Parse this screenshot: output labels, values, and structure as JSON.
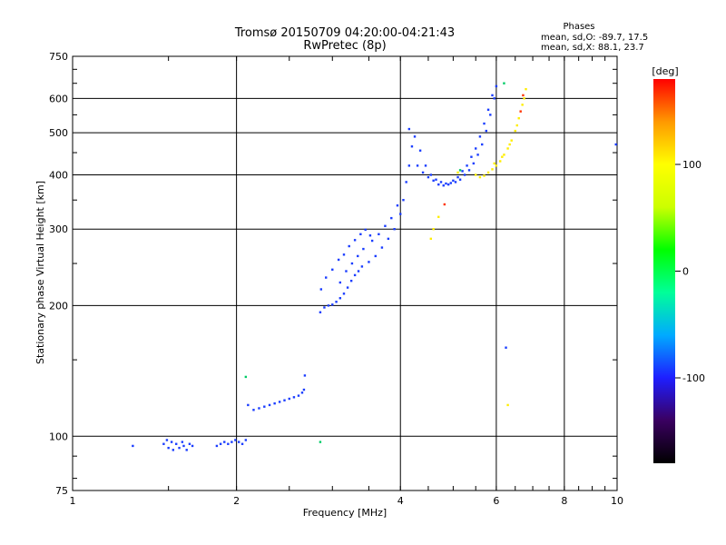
{
  "chart_data": {
    "type": "scatter",
    "title": "Tromsø 20150709 04:20:00-04:21:43",
    "subtitle": "RwPretec (8p)",
    "xlabel": "Frequency [MHz]",
    "ylabel": "Stationary phase Virtual Height [km]",
    "x_scale": "log",
    "y_scale": "log",
    "xlim": [
      1,
      10
    ],
    "ylim": [
      75,
      750
    ],
    "x_ticks": [
      "1",
      "2",
      "4",
      "6",
      "8",
      "10"
    ],
    "y_ticks": [
      "75",
      "100",
      "200",
      "300",
      "400",
      "500",
      "600",
      "750"
    ],
    "grid": true,
    "phases_header": "Phases",
    "phases_line_o": "mean, sd,O:  -89.7,  17.5",
    "phases_line_x": "mean, sd,X:  88.1,  23.7",
    "colorbar": {
      "label": "[deg]",
      "range": [
        -180,
        180
      ],
      "ticks": [
        "100",
        "0",
        "-100"
      ],
      "tick_values": [
        100,
        0,
        -100
      ],
      "stops": [
        "#000000",
        "#3a0060",
        "#1e1eff",
        "#00aaff",
        "#00ff99",
        "#00ff00",
        "#ccff00",
        "#ffff00",
        "#ff9900",
        "#ff0000"
      ]
    },
    "series": [
      {
        "color": "#1a3dff",
        "points": [
          [
            1.29,
            95
          ],
          [
            1.47,
            96
          ],
          [
            1.49,
            98
          ],
          [
            1.5,
            94
          ],
          [
            1.52,
            97
          ],
          [
            1.53,
            93
          ],
          [
            1.55,
            96
          ],
          [
            1.57,
            94
          ],
          [
            1.59,
            97
          ],
          [
            1.6,
            95
          ],
          [
            1.62,
            93
          ],
          [
            1.64,
            96
          ],
          [
            1.66,
            95
          ],
          [
            1.84,
            95
          ],
          [
            1.87,
            96
          ],
          [
            1.9,
            97
          ],
          [
            1.93,
            96
          ],
          [
            1.96,
            97
          ],
          [
            1.99,
            98
          ],
          [
            2.02,
            97
          ],
          [
            2.05,
            96
          ],
          [
            2.08,
            98
          ],
          [
            2.1,
            118
          ],
          [
            2.15,
            115
          ],
          [
            2.2,
            116
          ],
          [
            2.25,
            117
          ],
          [
            2.3,
            118
          ],
          [
            2.35,
            119
          ],
          [
            2.4,
            120
          ],
          [
            2.45,
            121
          ],
          [
            2.5,
            122
          ],
          [
            2.55,
            123
          ],
          [
            2.6,
            124
          ],
          [
            2.64,
            126
          ],
          [
            2.66,
            128
          ],
          [
            2.67,
            138
          ],
          [
            2.85,
            193
          ],
          [
            2.9,
            198
          ],
          [
            2.95,
            200
          ],
          [
            3.0,
            201
          ],
          [
            3.05,
            204
          ],
          [
            3.1,
            208
          ],
          [
            3.15,
            213
          ],
          [
            3.2,
            220
          ],
          [
            3.25,
            228
          ],
          [
            3.3,
            235
          ],
          [
            3.35,
            240
          ],
          [
            3.4,
            246
          ],
          [
            3.5,
            252
          ],
          [
            3.6,
            260
          ],
          [
            3.7,
            272
          ],
          [
            3.8,
            285
          ],
          [
            3.9,
            300
          ],
          [
            4.0,
            325
          ],
          [
            4.05,
            350
          ],
          [
            4.1,
            385
          ],
          [
            4.15,
            420
          ],
          [
            4.2,
            465
          ],
          [
            2.86,
            218
          ],
          [
            2.92,
            232
          ],
          [
            3.0,
            242
          ],
          [
            3.08,
            255
          ],
          [
            3.15,
            262
          ],
          [
            3.22,
            274
          ],
          [
            3.3,
            283
          ],
          [
            3.38,
            292
          ],
          [
            3.45,
            299
          ],
          [
            3.52,
            290
          ],
          [
            3.1,
            226
          ],
          [
            3.18,
            240
          ],
          [
            3.26,
            250
          ],
          [
            3.34,
            260
          ],
          [
            3.42,
            270
          ],
          [
            3.55,
            282
          ],
          [
            3.65,
            292
          ],
          [
            3.75,
            305
          ],
          [
            3.85,
            318
          ],
          [
            3.95,
            340
          ],
          [
            4.15,
            510
          ],
          [
            4.25,
            490
          ],
          [
            4.35,
            455
          ],
          [
            4.45,
            420
          ],
          [
            4.55,
            400
          ],
          [
            4.65,
            390
          ],
          [
            4.75,
            385
          ],
          [
            4.85,
            382
          ],
          [
            4.95,
            383
          ],
          [
            5.05,
            385
          ],
          [
            5.15,
            390
          ],
          [
            5.25,
            400
          ],
          [
            5.35,
            410
          ],
          [
            5.45,
            425
          ],
          [
            5.55,
            445
          ],
          [
            5.65,
            470
          ],
          [
            5.75,
            505
          ],
          [
            5.85,
            550
          ],
          [
            5.95,
            600
          ],
          [
            6.0,
            640
          ],
          [
            4.3,
            420
          ],
          [
            4.4,
            405
          ],
          [
            4.5,
            395
          ],
          [
            4.6,
            388
          ],
          [
            4.7,
            380
          ],
          [
            4.8,
            378
          ],
          [
            4.9,
            380
          ],
          [
            5.0,
            388
          ],
          [
            5.1,
            395
          ],
          [
            5.2,
            408
          ],
          [
            5.3,
            420
          ],
          [
            5.4,
            440
          ],
          [
            5.5,
            460
          ],
          [
            5.6,
            490
          ],
          [
            5.7,
            525
          ],
          [
            5.8,
            565
          ],
          [
            5.9,
            610
          ],
          [
            6.25,
            160
          ],
          [
            9.95,
            470
          ]
        ]
      },
      {
        "color": "#ffee00",
        "points": [
          [
            4.55,
            285
          ],
          [
            4.6,
            300
          ],
          [
            4.7,
            320
          ],
          [
            5.1,
            405
          ],
          [
            5.5,
            400
          ],
          [
            5.6,
            395
          ],
          [
            5.7,
            398
          ],
          [
            5.8,
            405
          ],
          [
            5.9,
            412
          ],
          [
            6.0,
            420
          ],
          [
            6.1,
            430
          ],
          [
            6.2,
            445
          ],
          [
            6.3,
            460
          ],
          [
            6.4,
            480
          ],
          [
            6.5,
            505
          ],
          [
            6.6,
            540
          ],
          [
            6.7,
            580
          ],
          [
            6.8,
            630
          ],
          [
            6.75,
            600
          ],
          [
            6.55,
            520
          ],
          [
            6.35,
            470
          ],
          [
            6.15,
            440
          ],
          [
            5.95,
            425
          ],
          [
            6.3,
            118
          ]
        ]
      },
      {
        "color": "#ff3300",
        "points": [
          [
            4.82,
            342
          ],
          [
            6.65,
            560
          ],
          [
            6.72,
            610
          ]
        ]
      },
      {
        "color": "#00cc66",
        "points": [
          [
            2.85,
            97
          ],
          [
            2.08,
            137
          ],
          [
            5.15,
            410
          ],
          [
            6.2,
            650
          ]
        ]
      }
    ]
  }
}
